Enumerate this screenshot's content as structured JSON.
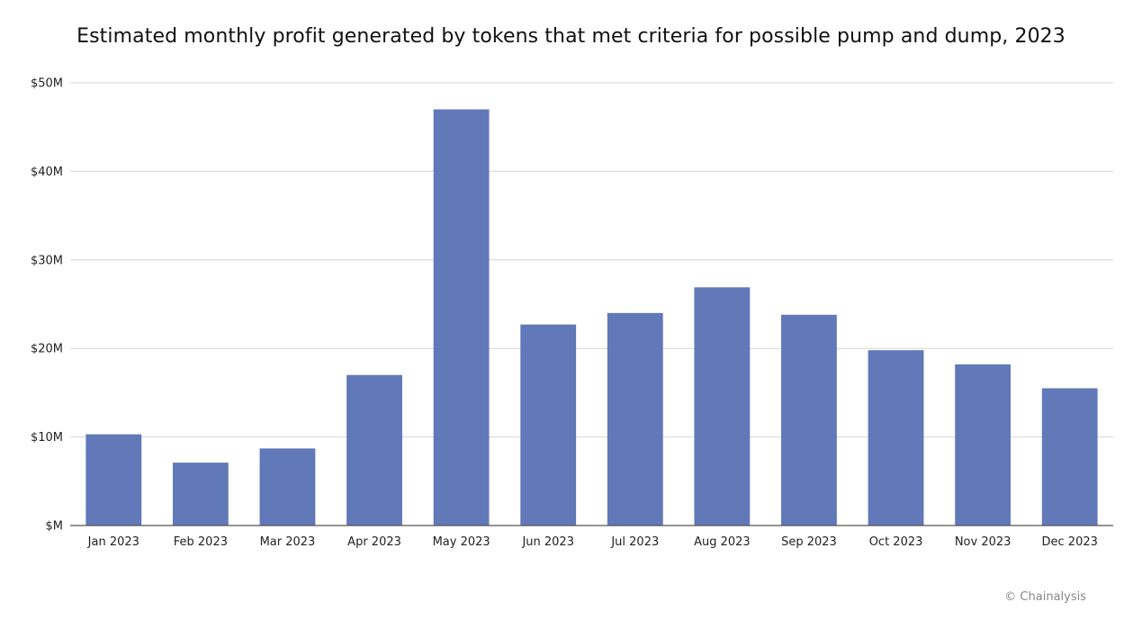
{
  "chart_data": {
    "type": "bar",
    "title": "Estimated monthly profit generated by tokens that met criteria for possible pump and dump, 2023",
    "xlabel": "",
    "ylabel": "",
    "categories": [
      "Jan 2023",
      "Feb 2023",
      "Mar 2023",
      "Apr 2023",
      "May 2023",
      "Jun 2023",
      "Jul 2023",
      "Aug 2023",
      "Sep 2023",
      "Oct 2023",
      "Nov 2023",
      "Dec 2023"
    ],
    "series": [
      {
        "values": [
          10.3,
          7.1,
          8.7,
          17.0,
          47.0,
          22.7,
          24.0,
          26.9,
          23.8,
          19.8,
          18.2,
          15.5
        ],
        "color": "#6178b9"
      }
    ],
    "ylim": [
      0,
      50
    ],
    "yticks": [
      0,
      10,
      20,
      30,
      40,
      50
    ],
    "ytick_labels": [
      "$M",
      "$10M",
      "$20M",
      "$30M",
      "$40M",
      "$50M"
    ],
    "grid": true,
    "legend": "none"
  },
  "source": "© Chainalysis"
}
